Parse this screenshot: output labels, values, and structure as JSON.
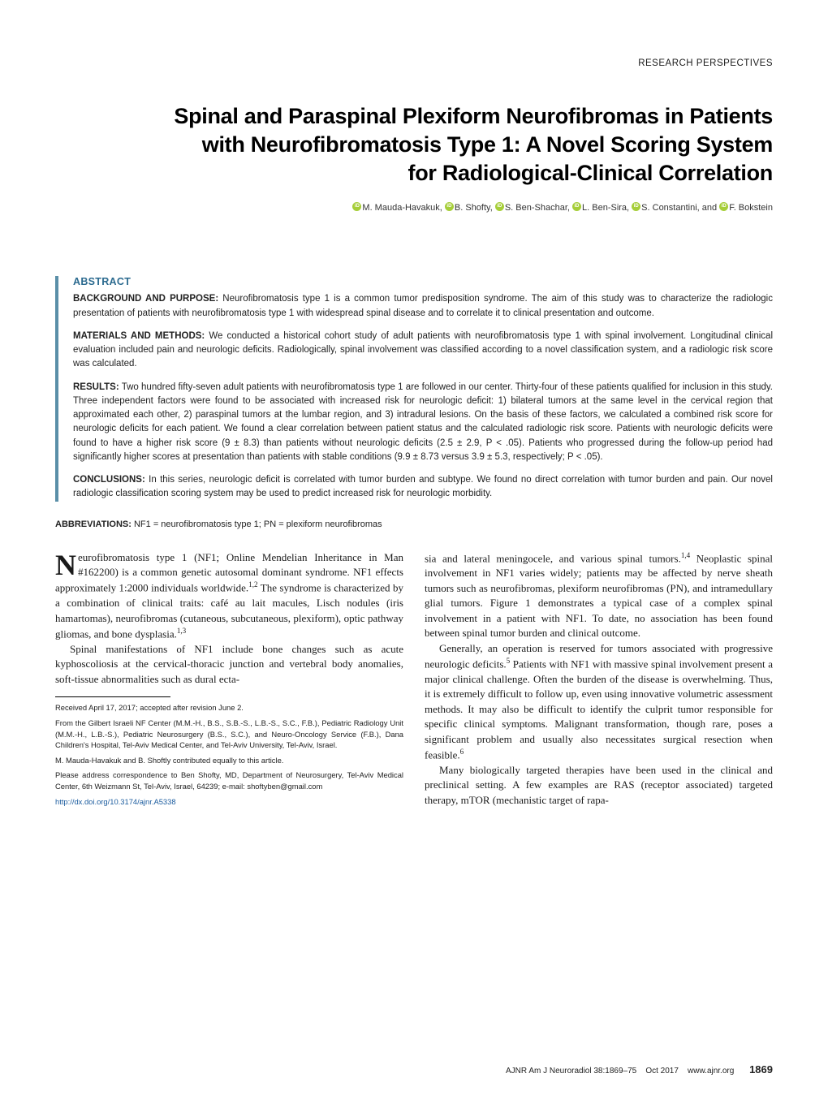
{
  "header": {
    "category": "RESEARCH PERSPECTIVES"
  },
  "title": {
    "line1": "Spinal and Paraspinal Plexiform Neurofibromas in Patients",
    "line2": "with Neurofibromatosis Type 1: A Novel Scoring System",
    "line3": "for Radiological-Clinical Correlation"
  },
  "authors": {
    "a1": "M. Mauda-Havakuk,",
    "a2": "B. Shofty,",
    "a3": "S. Ben-Shachar,",
    "a4": "L. Ben-Sira,",
    "a5": "S. Constantini, and",
    "a6": "F. Bokstein"
  },
  "abstract": {
    "heading": "ABSTRACT",
    "bg_label": "BACKGROUND AND PURPOSE:",
    "bg_text": " Neurofibromatosis type 1 is a common tumor predisposition syndrome. The aim of this study was to characterize the radiologic presentation of patients with neurofibromatosis type 1 with widespread spinal disease and to correlate it to clinical presentation and outcome.",
    "mm_label": "MATERIALS AND METHODS:",
    "mm_text": " We conducted a historical cohort study of adult patients with neurofibromatosis type 1 with spinal involvement. Longitudinal clinical evaluation included pain and neurologic deficits. Radiologically, spinal involvement was classified according to a novel classification system, and a radiologic risk score was calculated.",
    "res_label": "RESULTS:",
    "res_text": " Two hundred fifty-seven adult patients with neurofibromatosis type 1 are followed in our center. Thirty-four of these patients qualified for inclusion in this study. Three independent factors were found to be associated with increased risk for neurologic deficit: 1) bilateral tumors at the same level in the cervical region that approximated each other, 2) paraspinal tumors at the lumbar region, and 3) intradural lesions. On the basis of these factors, we calculated a combined risk score for neurologic deficits for each patient. We found a clear correlation between patient status and the calculated radiologic risk score. Patients with neurologic deficits were found to have a higher risk score (9 ± 8.3) than patients without neurologic deficits (2.5 ± 2.9, P < .05). Patients who progressed during the follow-up period had significantly higher scores at presentation than patients with stable conditions (9.9 ± 8.73 versus 3.9 ± 5.3, respectively; P < .05).",
    "con_label": "CONCLUSIONS:",
    "con_text": " In this series, neurologic deficit is correlated with tumor burden and subtype. We found no direct correlation with tumor burden and pain. Our novel radiologic classification scoring system may be used to predict increased risk for neurologic morbidity."
  },
  "abbreviations": {
    "label": "ABBREVIATIONS:",
    "text": " NF1 = neurofibromatosis type 1; PN = plexiform neurofibromas"
  },
  "body": {
    "col1": {
      "p1a": "eurofibromatosis type 1 (NF1; Online Mendelian Inheritance in Man #162200) is a common genetic autosomal dominant syndrome. NF1 effects approximately 1:2000 individuals worldwide.",
      "p1_sup1": "1,2",
      "p1b": " The syndrome is characterized by a combination of clinical traits: café au lait macules, Lisch nodules (iris hamartomas), neurofibromas (cutaneous, subcutaneous, plexiform), optic pathway gliomas, and bone dysplasia.",
      "p1_sup2": "1,3",
      "p2": "Spinal manifestations of NF1 include bone changes such as acute kyphoscoliosis at the cervical-thoracic junction and vertebral body anomalies, soft-tissue abnormalities such as dural ecta-"
    },
    "col2": {
      "p1a": "sia and lateral meningocele, and various spinal tumors.",
      "p1_sup1": "1,4",
      "p1b": " Neoplastic spinal involvement in NF1 varies widely; patients may be affected by nerve sheath tumors such as neurofibromas, plexiform neurofibromas (PN), and intramedullary glial tumors. Figure 1 demonstrates a typical case of a complex spinal involvement in a patient with NF1. To date, no association has been found between spinal tumor burden and clinical outcome.",
      "p2a": "Generally, an operation is reserved for tumors associated with progressive neurologic deficits.",
      "p2_sup1": "5",
      "p2b": " Patients with NF1 with massive spinal involvement present a major clinical challenge. Often the burden of the disease is overwhelming. Thus, it is extremely difficult to follow up, even using innovative volumetric assessment methods. It may also be difficult to identify the culprit tumor responsible for specific clinical symptoms. Malignant transformation, though rare, poses a significant problem and usually also necessitates surgical resection when feasible.",
      "p2_sup2": "6",
      "p3": "Many biologically targeted therapies have been used in the clinical and preclinical setting. A few examples are RAS (receptor associated) targeted therapy, mTOR (mechanistic target of rapa-"
    }
  },
  "footnotes": {
    "received": "Received April 17, 2017; accepted after revision June 2.",
    "affil": "From the Gilbert Israeli NF Center (M.M.-H., B.S., S.B.-S., L.B.-S., S.C., F.B.), Pediatric Radiology Unit (M.M.-H., L.B.-S.), Pediatric Neurosurgery (B.S., S.C.), and Neuro-Oncology Service (F.B.), Dana Children's Hospital, Tel-Aviv Medical Center, and Tel-Aviv University, Tel-Aviv, Israel.",
    "equal": "M. Mauda-Havakuk and B. Shoftly contributed equally to this article.",
    "corresp": "Please address correspondence to Ben Shofty, MD, Department of Neurosurgery, Tel-Aviv Medical Center, 6th Weizmann St, Tel-Aviv, Israel, 64239; e-mail: shoftyben@gmail.com",
    "doi": "http://dx.doi.org/10.3174/ajnr.A5338"
  },
  "footer": {
    "journal": "AJNR Am J Neuroradiol 38:1869–75",
    "date": "Oct 2017",
    "url": "www.ajnr.org",
    "page": "1869"
  },
  "colors": {
    "accent_blue": "#2b6a8f",
    "border_blue": "#5a8fa8",
    "orcid_green": "#a6ce39",
    "link_blue": "#1a5b9e"
  }
}
